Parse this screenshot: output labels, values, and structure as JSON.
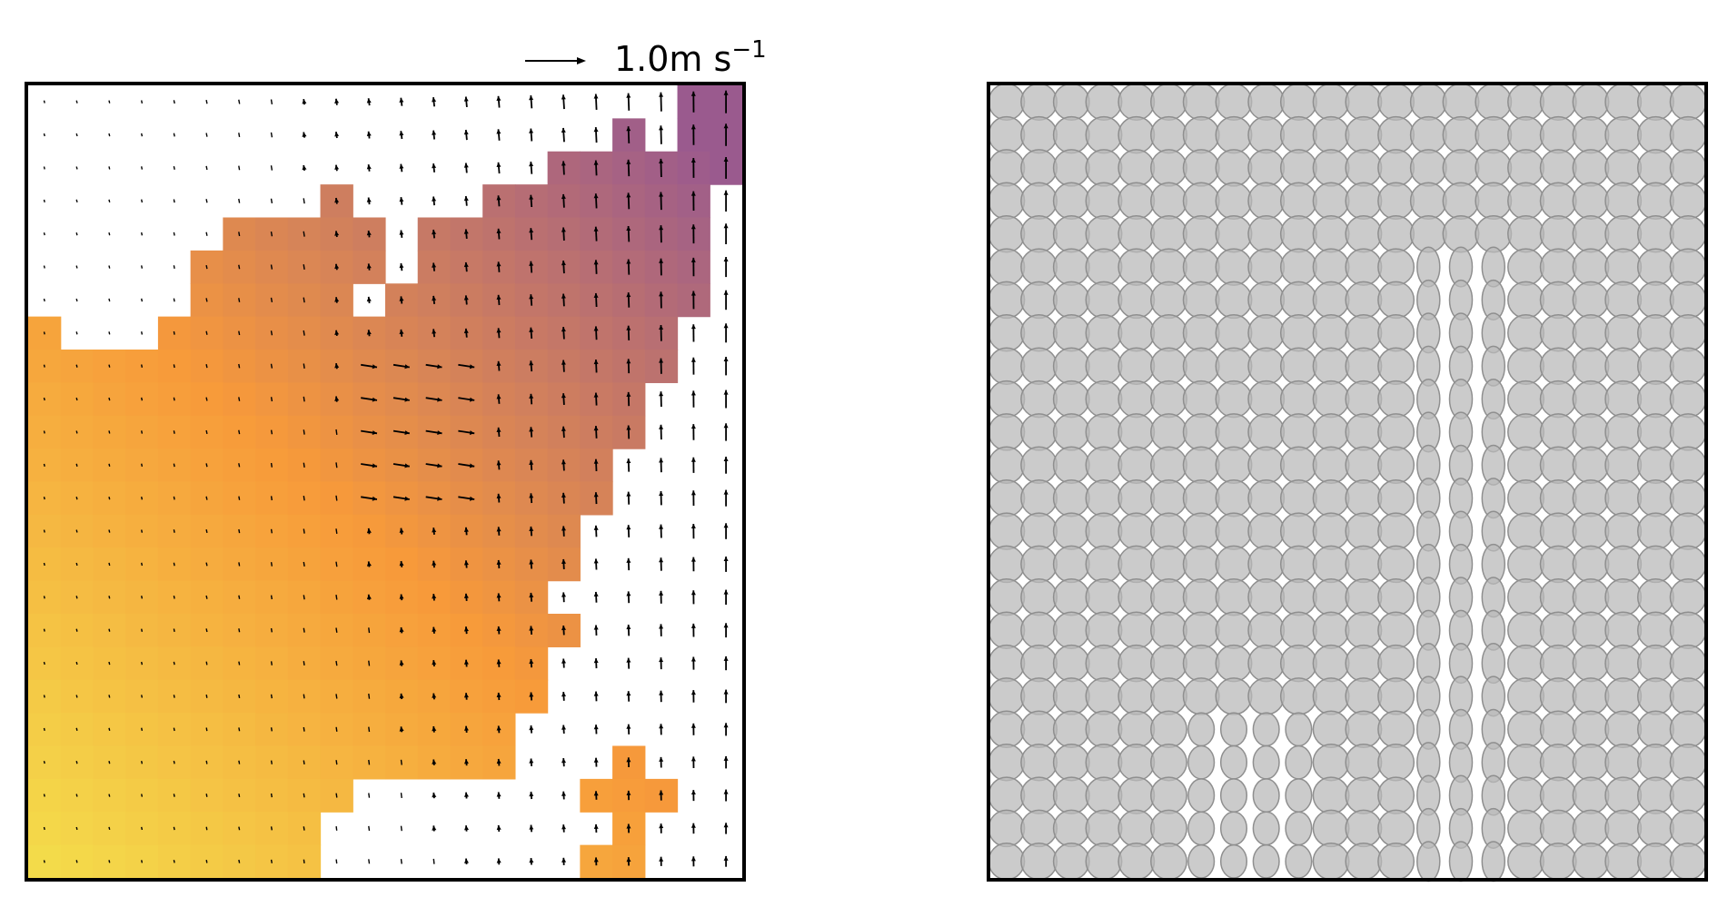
{
  "chart_data": [
    {
      "type": "heatmap",
      "panel": "left",
      "title": "",
      "xlabel": "",
      "ylabel": "",
      "grid": false,
      "legend": "none",
      "quiver_key": {
        "label": "1.0m s",
        "exponent": "−1",
        "magnitude": 1.0,
        "unit": "m s^-1",
        "placement": "top-right"
      },
      "colormap": "plasma-like",
      "colormap_range": [
        0,
        1
      ],
      "colors": {
        "low": "#f3e24c",
        "mid": "#f79a3a",
        "high": "#9a5a8e",
        "background": "#ffffff",
        "arrow": "#000000"
      },
      "grid_size": [
        22,
        24
      ],
      "masked_value": null,
      "field": [
        [
          null,
          null,
          null,
          null,
          null,
          null,
          null,
          null,
          null,
          null,
          null,
          null,
          null,
          null,
          null,
          null,
          null,
          null,
          null,
          null,
          null,
          null
        ],
        [
          null,
          null,
          null,
          null,
          null,
          null,
          null,
          null,
          null,
          null,
          null,
          null,
          null,
          null,
          null,
          null,
          null,
          null,
          null,
          null,
          null,
          null
        ],
        [
          null,
          null,
          null,
          null,
          null,
          null,
          null,
          null,
          null,
          null,
          null,
          null,
          null,
          null,
          null,
          null,
          null,
          null,
          null,
          null,
          null,
          null
        ],
        [
          null,
          null,
          null,
          null,
          null,
          null,
          null,
          null,
          null,
          null,
          null,
          null,
          null,
          null,
          null,
          null,
          null,
          null,
          null,
          null,
          null,
          null
        ],
        [
          null,
          null,
          null,
          null,
          null,
          null,
          null,
          null,
          null,
          null,
          null,
          null,
          null,
          null,
          null,
          null,
          null,
          null,
          null,
          null,
          null,
          null
        ],
        [
          null,
          null,
          null,
          null,
          null,
          null,
          null,
          null,
          null,
          null,
          null,
          null,
          null,
          null,
          null,
          null,
          null,
          null,
          null,
          null,
          null,
          null
        ],
        [
          null,
          null,
          null,
          null,
          null,
          null,
          null,
          null,
          null,
          null,
          null,
          null,
          null,
          null,
          null,
          null,
          null,
          null,
          null,
          null,
          null,
          null
        ],
        [
          null,
          null,
          null,
          null,
          null,
          null,
          null,
          null,
          null,
          null,
          null,
          null,
          null,
          null,
          null,
          null,
          null,
          null,
          null,
          null,
          null,
          null
        ],
        [
          null,
          null,
          null,
          null,
          null,
          null,
          null,
          null,
          null,
          null,
          null,
          null,
          null,
          null,
          null,
          null,
          null,
          null,
          null,
          null,
          null,
          null
        ],
        [
          null,
          null,
          null,
          null,
          null,
          null,
          null,
          null,
          null,
          null,
          null,
          null,
          null,
          null,
          null,
          null,
          null,
          null,
          null,
          null,
          null,
          null
        ],
        [
          null,
          null,
          null,
          null,
          null,
          null,
          null,
          null,
          null,
          null,
          null,
          null,
          null,
          null,
          null,
          null,
          null,
          null,
          null,
          null,
          null,
          null
        ],
        [
          null,
          null,
          null,
          null,
          null,
          null,
          null,
          null,
          null,
          null,
          null,
          null,
          null,
          null,
          null,
          null,
          null,
          null,
          null,
          null,
          null,
          null
        ],
        [
          null,
          null,
          null,
          null,
          null,
          null,
          null,
          null,
          null,
          null,
          null,
          null,
          null,
          null,
          null,
          null,
          null,
          null,
          null,
          null,
          null,
          null
        ],
        [
          null,
          null,
          null,
          null,
          null,
          null,
          null,
          null,
          null,
          null,
          null,
          null,
          null,
          null,
          null,
          null,
          null,
          null,
          null,
          null,
          null,
          null
        ],
        [
          null,
          null,
          null,
          null,
          null,
          null,
          null,
          null,
          null,
          null,
          null,
          null,
          null,
          null,
          null,
          null,
          null,
          null,
          null,
          null,
          null,
          null
        ],
        [
          null,
          null,
          null,
          null,
          null,
          null,
          null,
          null,
          null,
          null,
          null,
          null,
          null,
          null,
          null,
          null,
          null,
          null,
          null,
          null,
          null,
          null
        ],
        [
          null,
          null,
          null,
          null,
          null,
          null,
          null,
          null,
          null,
          null,
          null,
          null,
          null,
          null,
          null,
          null,
          null,
          null,
          null,
          null,
          null,
          null
        ],
        [
          null,
          null,
          null,
          null,
          null,
          null,
          null,
          null,
          null,
          null,
          null,
          null,
          null,
          null,
          null,
          null,
          null,
          null,
          null,
          null,
          null,
          null
        ],
        [
          null,
          null,
          null,
          null,
          null,
          null,
          null,
          null,
          null,
          null,
          null,
          null,
          null,
          null,
          null,
          null,
          null,
          null,
          null,
          null,
          null,
          null
        ],
        [
          null,
          null,
          null,
          null,
          null,
          null,
          null,
          null,
          null,
          null,
          null,
          null,
          null,
          null,
          null,
          null,
          null,
          null,
          null,
          null,
          null,
          null
        ],
        [
          null,
          null,
          null,
          null,
          null,
          null,
          null,
          null,
          null,
          null,
          null,
          null,
          null,
          null,
          null,
          null,
          null,
          null,
          null,
          null,
          null,
          null
        ],
        [
          null,
          null,
          null,
          null,
          null,
          null,
          null,
          null,
          null,
          null,
          null,
          null,
          null,
          null,
          null,
          null,
          null,
          null,
          null,
          null,
          null,
          null
        ],
        [
          null,
          null,
          null,
          null,
          null,
          null,
          null,
          null,
          null,
          null,
          null,
          null,
          null,
          null,
          null,
          null,
          null,
          null,
          null,
          null,
          null,
          null
        ],
        [
          null,
          null,
          null,
          null,
          null,
          null,
          null,
          null,
          null,
          null,
          null,
          null,
          null,
          null,
          null,
          null,
          null,
          null,
          null,
          null,
          null,
          null
        ]
      ],
      "covered_rows": [
        {
          "row": 0,
          "cols": [
            20,
            21
          ]
        },
        {
          "row": 1,
          "cols": [
            18,
            20,
            21
          ]
        },
        {
          "row": 2,
          "cols": [
            16,
            17,
            18,
            19,
            20,
            21
          ]
        },
        {
          "row": 3,
          "cols": [
            9,
            14,
            15,
            16,
            17,
            18,
            19,
            20
          ]
        },
        {
          "row": 4,
          "cols": [
            6,
            7,
            8,
            9,
            10,
            12,
            13,
            14,
            15,
            16,
            17,
            18,
            19,
            20
          ]
        },
        {
          "row": 5,
          "cols": [
            5,
            6,
            7,
            8,
            9,
            10,
            12,
            13,
            14,
            15,
            16,
            17,
            18,
            19,
            20
          ]
        },
        {
          "row": 6,
          "cols": [
            5,
            6,
            7,
            8,
            9,
            11,
            12,
            13,
            14,
            15,
            16,
            17,
            18,
            19,
            20
          ]
        },
        {
          "row": 7,
          "cols": [
            0,
            4,
            5,
            6,
            7,
            8,
            9,
            10,
            11,
            12,
            13,
            14,
            15,
            16,
            17,
            18,
            19
          ]
        },
        {
          "row": 8,
          "cols": [
            0,
            1,
            2,
            3,
            4,
            5,
            6,
            7,
            8,
            9,
            10,
            11,
            12,
            13,
            14,
            15,
            16,
            17,
            18,
            19
          ]
        },
        {
          "row": 9,
          "cols": [
            0,
            1,
            2,
            3,
            4,
            5,
            6,
            7,
            8,
            9,
            10,
            11,
            12,
            13,
            14,
            15,
            16,
            17,
            18
          ]
        },
        {
          "row": 10,
          "cols": [
            0,
            1,
            2,
            3,
            4,
            5,
            6,
            7,
            8,
            9,
            10,
            11,
            12,
            13,
            14,
            15,
            16,
            17,
            18
          ]
        },
        {
          "row": 11,
          "cols": [
            0,
            1,
            2,
            3,
            4,
            5,
            6,
            7,
            8,
            9,
            10,
            11,
            12,
            13,
            14,
            15,
            16,
            17
          ]
        },
        {
          "row": 12,
          "cols": [
            0,
            1,
            2,
            3,
            4,
            5,
            6,
            7,
            8,
            9,
            10,
            11,
            12,
            13,
            14,
            15,
            16,
            17
          ]
        },
        {
          "row": 13,
          "cols": [
            0,
            1,
            2,
            3,
            4,
            5,
            6,
            7,
            8,
            9,
            10,
            11,
            12,
            13,
            14,
            15,
            16
          ]
        },
        {
          "row": 14,
          "cols": [
            0,
            1,
            2,
            3,
            4,
            5,
            6,
            7,
            8,
            9,
            10,
            11,
            12,
            13,
            14,
            15,
            16
          ]
        },
        {
          "row": 15,
          "cols": [
            0,
            1,
            2,
            3,
            4,
            5,
            6,
            7,
            8,
            9,
            10,
            11,
            12,
            13,
            14,
            15
          ]
        },
        {
          "row": 16,
          "cols": [
            0,
            1,
            2,
            3,
            4,
            5,
            6,
            7,
            8,
            9,
            10,
            11,
            12,
            13,
            14,
            15,
            16
          ]
        },
        {
          "row": 17,
          "cols": [
            0,
            1,
            2,
            3,
            4,
            5,
            6,
            7,
            8,
            9,
            10,
            11,
            12,
            13,
            14,
            15
          ]
        },
        {
          "row": 18,
          "cols": [
            0,
            1,
            2,
            3,
            4,
            5,
            6,
            7,
            8,
            9,
            10,
            11,
            12,
            13,
            14,
            15
          ]
        },
        {
          "row": 19,
          "cols": [
            0,
            1,
            2,
            3,
            4,
            5,
            6,
            7,
            8,
            9,
            10,
            11,
            12,
            13,
            14
          ]
        },
        {
          "row": 20,
          "cols": [
            0,
            1,
            2,
            3,
            4,
            5,
            6,
            7,
            8,
            9,
            10,
            11,
            12,
            13,
            14,
            18
          ]
        },
        {
          "row": 21,
          "cols": [
            0,
            1,
            2,
            3,
            4,
            5,
            6,
            7,
            8,
            9,
            17,
            18,
            19
          ]
        },
        {
          "row": 22,
          "cols": [
            0,
            1,
            2,
            3,
            4,
            5,
            6,
            7,
            8,
            18
          ]
        },
        {
          "row": 23,
          "cols": [
            0,
            1,
            2,
            3,
            4,
            5,
            6,
            7,
            8,
            17,
            18
          ]
        }
      ]
    },
    {
      "type": "scatter",
      "panel": "right",
      "title": "",
      "xlabel": "",
      "ylabel": "",
      "grid": false,
      "legend": "none",
      "marker": "ellipse",
      "grid_size": [
        22,
        24
      ],
      "colors": {
        "fill": "#b9b9b9",
        "edge": "#8f8f8f",
        "background": "#ffffff"
      }
    }
  ]
}
